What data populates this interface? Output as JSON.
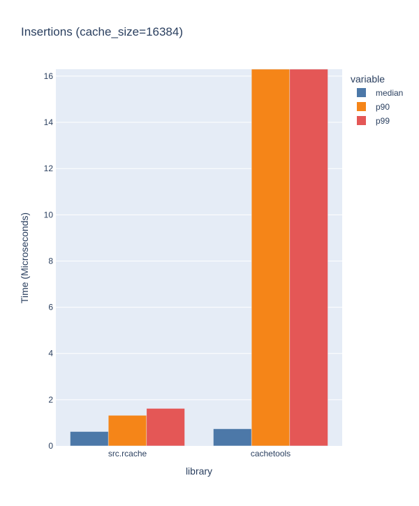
{
  "chart_data": {
    "type": "bar",
    "title": "Insertions (cache_size=16384)",
    "xlabel": "library",
    "ylabel": "Time (Microseconds)",
    "categories": [
      "src.rcache",
      "cachetools"
    ],
    "series": [
      {
        "name": "median",
        "values": [
          0.62,
          0.74
        ],
        "color": "#4c78a8"
      },
      {
        "name": "p90",
        "values": [
          1.32,
          16.5
        ],
        "color": "#f58518"
      },
      {
        "name": "p99",
        "values": [
          1.62,
          16.5
        ],
        "color": "#e45756"
      }
    ],
    "ylim": [
      0,
      16.3
    ],
    "yticks": [
      "0",
      "2",
      "4",
      "6",
      "8",
      "10",
      "12",
      "14",
      "16"
    ],
    "legend": {
      "title": "variable",
      "placement": "top-right"
    },
    "grid": true,
    "background_color": "#e5ecf6"
  }
}
